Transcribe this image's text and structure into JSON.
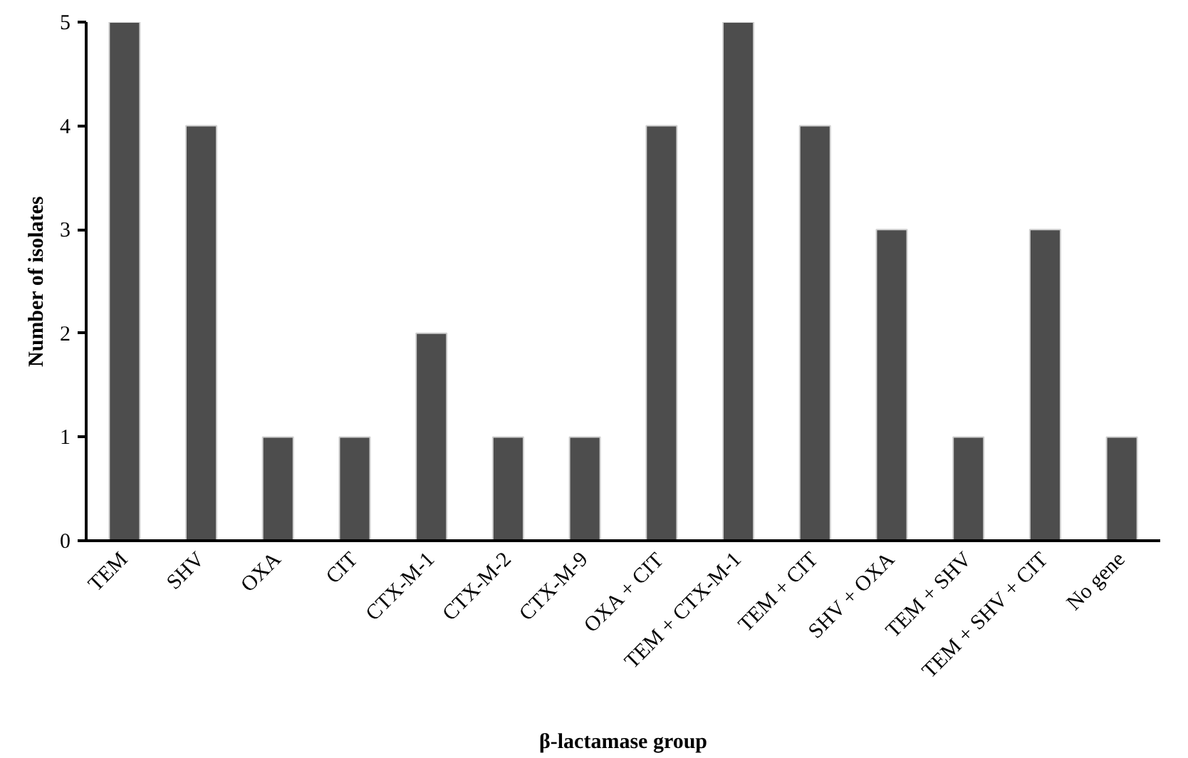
{
  "chart_data": {
    "type": "bar",
    "xlabel": "β-lactamase group",
    "ylabel": "Number of isolates",
    "categories": [
      "TEM",
      "SHV",
      "OXA",
      "CIT",
      "CTX-M-1",
      "CTX-M-2",
      "CTX-M-9",
      "OXA + CIT",
      "TEM + CTX-M-1",
      "TEM + CIT",
      "SHV + OXA",
      "TEM + SHV",
      "TEM + SHV + CIT",
      "No gene"
    ],
    "values": [
      5,
      4,
      1,
      1,
      2,
      1,
      1,
      4,
      5,
      4,
      3,
      1,
      3,
      1
    ],
    "color": "#4d4d4d",
    "ylim": [
      0,
      5
    ],
    "yticks": [
      0,
      1,
      2,
      3,
      4,
      5
    ],
    "grid": false
  }
}
